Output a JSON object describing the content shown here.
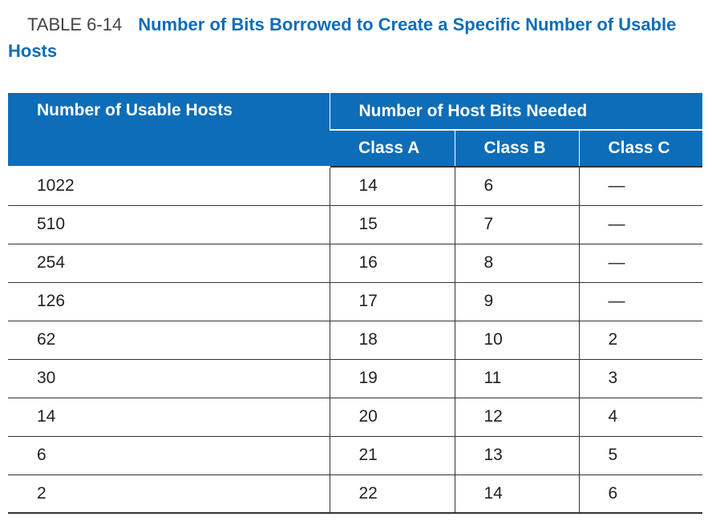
{
  "caption": {
    "number": "TABLE 6-14",
    "title": "Number of Bits Borrowed to Create a Specific Number of Usable Hosts"
  },
  "table": {
    "header_left": "Number of Usable Hosts",
    "header_group": "Number of Host Bits Needed",
    "sub_headers": [
      "Class A",
      "Class B",
      "Class C"
    ],
    "rows": [
      [
        "1022",
        "14",
        "6",
        "—"
      ],
      [
        "510",
        "15",
        "7",
        "—"
      ],
      [
        "254",
        "16",
        "8",
        "—"
      ],
      [
        "126",
        "17",
        "9",
        "—"
      ],
      [
        "62",
        "18",
        "10",
        "2"
      ],
      [
        "30",
        "19",
        "11",
        "3"
      ],
      [
        "14",
        "20",
        "12",
        "4"
      ],
      [
        "6",
        "21",
        "13",
        "5"
      ],
      [
        "2",
        "22",
        "14",
        "6"
      ]
    ]
  }
}
